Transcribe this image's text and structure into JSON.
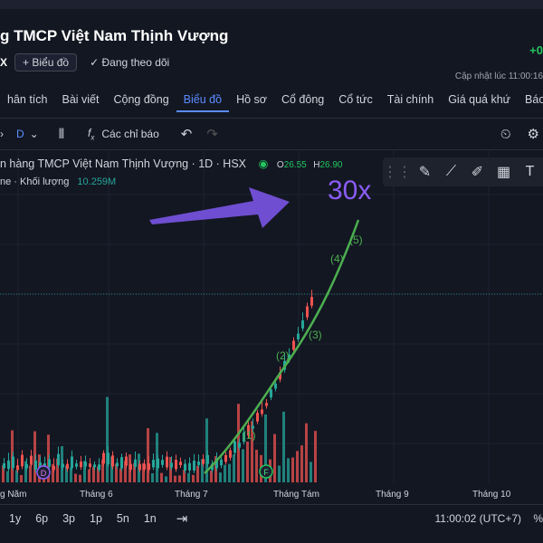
{
  "header": {
    "title": "g TMCP Việt Nam Thịnh Vượng",
    "ticker_tail": "X",
    "chart_button": "Biểu đồ",
    "follow_label": "Đang theo dõi",
    "price_change": "+0",
    "updated_label": "Cập nhật lúc  11:00:16"
  },
  "tabs": [
    {
      "label": "hân tích"
    },
    {
      "label": "Bài viết"
    },
    {
      "label": "Cộng đồng"
    },
    {
      "label": "Biểu đồ",
      "active": true
    },
    {
      "label": "Hồ sơ"
    },
    {
      "label": "Cổ đông"
    },
    {
      "label": "Cổ tức"
    },
    {
      "label": "Tài chính"
    },
    {
      "label": "Giá quá khứ"
    },
    {
      "label": "Báo cáo"
    }
  ],
  "toolbar": {
    "interval": "D",
    "indicators": "Các chỉ báo"
  },
  "legend": {
    "symbol_line": "n hàng TMCP Việt Nam Thịnh Vượng · 1D · HSX",
    "open_label": "O",
    "open_value": "26.55",
    "high_label": "H",
    "high_value": "26.90",
    "volume_label": "ne · Khối lượng",
    "volume_value": "10.259M"
  },
  "annotation": {
    "text": "30x",
    "color": "#8b5cf6"
  },
  "wave_labels": [
    "(1)",
    "(2)",
    "(3)",
    "(4)",
    "(5)"
  ],
  "event_markers": [
    "D",
    "F"
  ],
  "time_axis": [
    "g Năm",
    "Tháng 6",
    "Tháng 7",
    "Tháng Tám",
    "Tháng 9",
    "Tháng 10"
  ],
  "bottom": {
    "ranges": [
      "1y",
      "6p",
      "3p",
      "1p",
      "5n",
      "1n"
    ],
    "clock": "11:00:02 (UTC+7)",
    "pct": "%"
  },
  "colors": {
    "up": "#26a69a",
    "down": "#ef5350",
    "accent": "#5b8cff",
    "wave": "#4caf50"
  }
}
